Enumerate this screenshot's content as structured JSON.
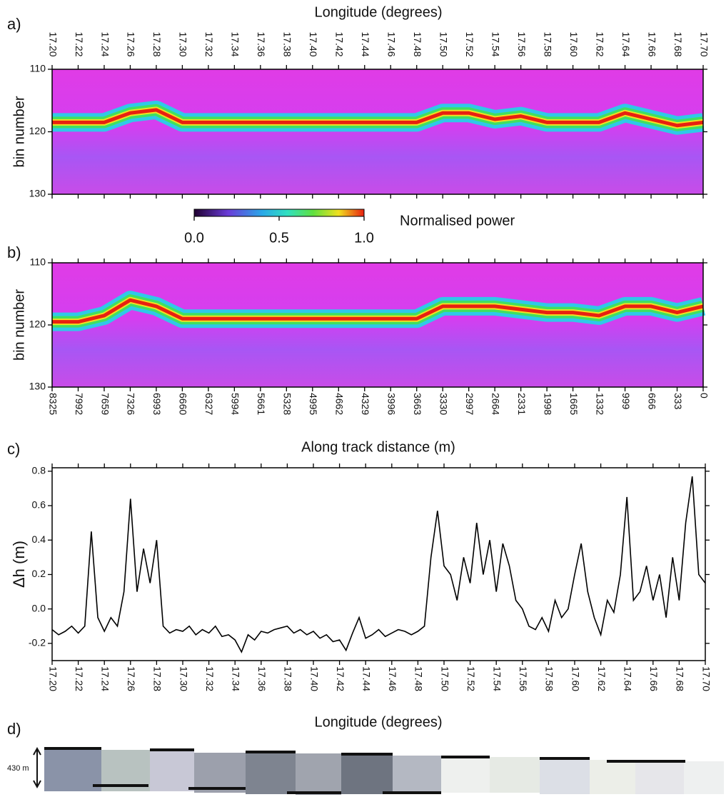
{
  "figure": {
    "panel_labels": [
      "a)",
      "b)",
      "c)",
      "d)"
    ],
    "scale_label": "430 m",
    "colorbar": {
      "title": "Normalised power",
      "clim": [
        0,
        1
      ],
      "ticks": [
        {
          "value": 0,
          "label": "0.0"
        },
        0.5,
        {
          "value": 1,
          "label": "1.0"
        }
      ]
    }
  },
  "chart_data": [
    {
      "type": "heatmap",
      "x_label": "Longitude (degrees)",
      "y_label": "bin number",
      "xlim": [
        17.2,
        17.7
      ],
      "xticks": [
        {
          "value": 17.2,
          "label": "17.20"
        },
        17.22,
        17.24,
        17.26,
        17.28,
        {
          "value": 17.3,
          "label": "17.30"
        },
        17.32,
        17.34,
        17.36,
        17.38,
        {
          "value": 17.4,
          "label": "17.40"
        },
        17.42,
        17.44,
        17.46,
        17.48,
        {
          "value": 17.5,
          "label": "17.50"
        },
        17.52,
        17.54,
        17.56,
        17.58,
        {
          "value": 17.6,
          "label": "17.60"
        },
        17.62,
        17.64,
        17.66,
        17.68,
        {
          "value": 17.7,
          "label": "17.70"
        }
      ],
      "ylim": [
        130,
        110
      ],
      "yticks": [
        110,
        120,
        130
      ],
      "x": [
        17.2,
        17.22,
        17.24,
        17.26,
        17.28,
        17.3,
        17.32,
        17.34,
        17.36,
        17.38,
        17.4,
        17.42,
        17.44,
        17.46,
        17.48,
        17.5,
        17.52,
        17.54,
        17.56,
        17.58,
        17.6,
        17.62,
        17.64,
        17.66,
        17.68,
        17.7
      ],
      "values": [
        118.5,
        118.5,
        118.5,
        117,
        116.5,
        118.5,
        118.5,
        118.5,
        118.5,
        118.5,
        118.5,
        118.5,
        118.5,
        118.5,
        118.5,
        117,
        117,
        118,
        117.5,
        118.5,
        118.5,
        118.5,
        117,
        118,
        119,
        118.5
      ]
    },
    {
      "type": "heatmap",
      "x_label": "Along track distance (m)",
      "y_label": "bin number",
      "xlim": [
        8325,
        0
      ],
      "xticks": [
        8325,
        7992,
        7659,
        7326,
        6993,
        6660,
        6327,
        5994,
        5661,
        5328,
        4995,
        4662,
        4329,
        3996,
        3663,
        3330,
        2997,
        2664,
        2331,
        1998,
        1665,
        1332,
        999,
        666,
        333,
        0
      ],
      "ylim": [
        130,
        110
      ],
      "yticks": [
        110,
        120,
        130
      ],
      "x": [
        8325,
        7992,
        7659,
        7326,
        6993,
        6660,
        6327,
        5994,
        5661,
        5328,
        4995,
        4662,
        4329,
        3996,
        3663,
        3330,
        2997,
        2664,
        2331,
        1998,
        1665,
        1332,
        999,
        666,
        333,
        0
      ],
      "values": [
        119.5,
        119.5,
        118.5,
        116,
        117,
        119,
        119,
        119,
        119,
        119,
        119,
        119,
        119,
        119,
        119,
        117,
        117,
        117,
        117.5,
        118,
        118,
        118.5,
        117,
        117,
        118,
        117
      ]
    },
    {
      "type": "line",
      "x_label": "Longitude (degrees)",
      "y_label": "Δh (m)",
      "color": "#000000",
      "xlim": [
        17.2,
        17.7
      ],
      "xticks": [
        {
          "value": 17.2,
          "label": "17.20"
        },
        17.22,
        17.24,
        17.26,
        17.28,
        {
          "value": 17.3,
          "label": "17.30"
        },
        17.32,
        17.34,
        17.36,
        17.38,
        {
          "value": 17.4,
          "label": "17.40"
        },
        17.42,
        17.44,
        17.46,
        17.48,
        {
          "value": 17.5,
          "label": "17.50"
        },
        17.52,
        17.54,
        17.56,
        17.58,
        {
          "value": 17.6,
          "label": "17.60"
        },
        17.62,
        17.64,
        17.66,
        17.68,
        {
          "value": 17.7,
          "label": "17.70"
        }
      ],
      "ylim": [
        -0.3,
        0.82
      ],
      "yticks": [
        -0.2,
        {
          "value": 0,
          "label": "0.0"
        },
        0.2,
        0.4,
        0.6,
        0.8
      ],
      "x": [
        17.2,
        17.205,
        17.21,
        17.215,
        17.22,
        17.225,
        17.23,
        17.235,
        17.24,
        17.245,
        17.25,
        17.255,
        17.26,
        17.265,
        17.27,
        17.275,
        17.28,
        17.285,
        17.29,
        17.295,
        17.3,
        17.305,
        17.31,
        17.315,
        17.32,
        17.325,
        17.33,
        17.335,
        17.34,
        17.345,
        17.35,
        17.355,
        17.36,
        17.365,
        17.37,
        17.375,
        17.38,
        17.385,
        17.39,
        17.395,
        17.4,
        17.405,
        17.41,
        17.415,
        17.42,
        17.425,
        17.43,
        17.435,
        17.44,
        17.445,
        17.45,
        17.455,
        17.46,
        17.465,
        17.47,
        17.475,
        17.48,
        17.485,
        17.49,
        17.495,
        17.5,
        17.505,
        17.51,
        17.515,
        17.52,
        17.525,
        17.53,
        17.535,
        17.54,
        17.545,
        17.55,
        17.555,
        17.56,
        17.565,
        17.57,
        17.575,
        17.58,
        17.585,
        17.59,
        17.595,
        17.6,
        17.605,
        17.61,
        17.615,
        17.62,
        17.625,
        17.63,
        17.635,
        17.64,
        17.645,
        17.65,
        17.655,
        17.66,
        17.665,
        17.67,
        17.675,
        17.68,
        17.685,
        17.69,
        17.695,
        17.7
      ],
      "values": [
        -0.12,
        -0.15,
        -0.13,
        -0.1,
        -0.14,
        -0.1,
        0.45,
        -0.05,
        -0.13,
        -0.05,
        -0.1,
        0.1,
        0.64,
        0.1,
        0.35,
        0.15,
        0.4,
        -0.1,
        -0.14,
        -0.12,
        -0.13,
        -0.1,
        -0.15,
        -0.12,
        -0.14,
        -0.1,
        -0.16,
        -0.15,
        -0.18,
        -0.25,
        -0.15,
        -0.18,
        -0.13,
        -0.14,
        -0.12,
        -0.11,
        -0.1,
        -0.14,
        -0.12,
        -0.15,
        -0.13,
        -0.17,
        -0.15,
        -0.19,
        -0.18,
        -0.24,
        -0.14,
        -0.05,
        -0.17,
        -0.15,
        -0.12,
        -0.16,
        -0.14,
        -0.12,
        -0.13,
        -0.15,
        -0.13,
        -0.1,
        0.3,
        0.57,
        0.25,
        0.2,
        0.05,
        0.3,
        0.15,
        0.5,
        0.2,
        0.4,
        0.1,
        0.38,
        0.25,
        0.05,
        0,
        -0.1,
        -0.12,
        -0.05,
        -0.13,
        0.05,
        -0.05,
        0,
        0.2,
        0.38,
        0.1,
        -0.05,
        -0.15,
        0.05,
        -0.02,
        0.2,
        0.65,
        0.05,
        0.1,
        0.25,
        0.05,
        0.2,
        -0.05,
        0.3,
        0.05,
        0.5,
        0.77,
        0.2,
        0.15
      ]
    }
  ]
}
